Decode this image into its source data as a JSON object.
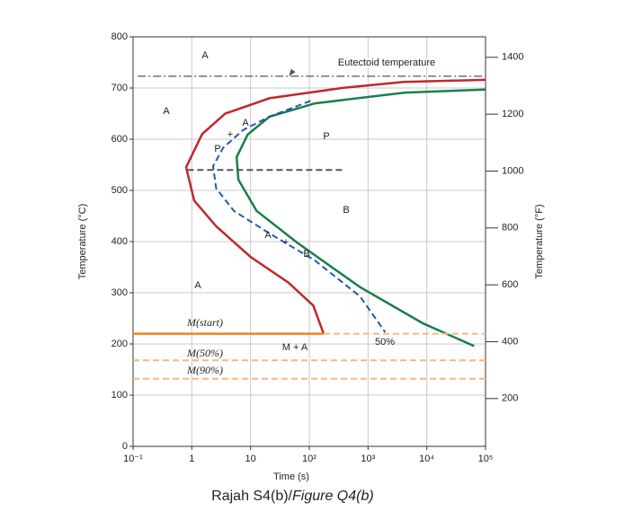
{
  "chart_data": {
    "type": "line",
    "title": "Rajah S4(b)/",
    "title_italic": "Figure Q4(b)",
    "x_label": "Time (s)",
    "y_label": "Temperature (°C)",
    "y2_label": "Temperature (°F)",
    "xscale": "log",
    "grid": true,
    "xlim": [
      0.1,
      100000
    ],
    "xticks": [
      {
        "value": 0.1,
        "label": "10⁻¹"
      },
      1,
      10,
      {
        "value": 100,
        "label": "10²"
      },
      {
        "value": 1000,
        "label": "10³"
      },
      {
        "value": 10000,
        "label": "10⁴"
      },
      {
        "value": 100000,
        "label": "10⁵"
      }
    ],
    "ylim": [
      0,
      800
    ],
    "yticks": [
      0,
      100,
      200,
      300,
      400,
      500,
      600,
      700,
      800
    ],
    "y2lim": [
      32,
      1472
    ],
    "y2ticks": [
      200,
      400,
      600,
      800,
      1000,
      1200,
      1400
    ],
    "series": [
      {
        "color": "#c0272d",
        "style": "solid",
        "x": [
          100000,
          4000,
          360,
          21,
          3.7,
          1.5,
          0.8,
          1.1,
          2.6,
          10,
          44,
          117,
          175
        ],
        "values": [
          716,
          712,
          700,
          680,
          650,
          610,
          545,
          480,
          430,
          370,
          320,
          275,
          220
        ]
      },
      {
        "color": "#1a7f4b",
        "style": "solid",
        "x": [
          100000,
          4270,
          125,
          21,
          8.9,
          5.8,
          6.2,
          12.7,
          62,
          730,
          8700,
          64000
        ],
        "values": [
          697,
          691,
          670,
          644,
          609,
          565,
          521,
          460,
          398,
          311,
          240,
          196
        ]
      },
      {
        "color": "#2357b5",
        "style": "dashed",
        "x": [
          105,
          21,
          7.5,
          3.4,
          2.3,
          2.6,
          5.2,
          21,
          125,
          730,
          1960
        ],
        "values": [
          675,
          644,
          618,
          583,
          547,
          504,
          460,
          416,
          363,
          293,
          223
        ]
      },
      {
        "color": "#f0831e",
        "style": "solid",
        "x": [
          0.1,
          175
        ],
        "values": [
          220,
          220
        ]
      },
      {
        "color": "#f7b77a",
        "style": "dashed",
        "x": [
          175,
          100000
        ],
        "values": [
          220,
          220
        ]
      },
      {
        "color": "#f7b77a",
        "style": "dashed",
        "x": [
          0.1,
          100000
        ],
        "values": [
          168,
          168
        ]
      },
      {
        "color": "#f7b77a",
        "style": "dashed",
        "x": [
          0.1,
          100000
        ],
        "values": [
          132,
          132
        ]
      },
      {
        "color": "#555555",
        "style": "dashdot",
        "x": [
          0.12,
          100000
        ],
        "values": [
          723,
          723
        ]
      },
      {
        "color": "#555555",
        "style": "dashed",
        "x": [
          0.84,
          390
        ],
        "values": [
          540,
          540
        ]
      }
    ],
    "annotations": [
      "A",
      "A",
      "A",
      "P",
      "B",
      "M + A",
      "50%",
      "Eutectoid temperature",
      "M(start)",
      "M(50%)",
      "M(90%)",
      "+",
      "A",
      "P",
      "A",
      "+",
      "B"
    ]
  }
}
